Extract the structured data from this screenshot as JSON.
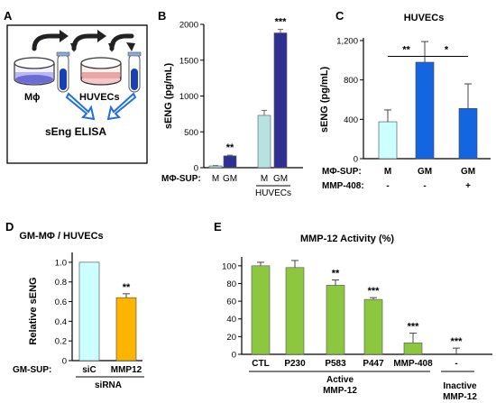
{
  "panels": {
    "A": {
      "label": "A",
      "macrophage_label": "Mϕ",
      "huvec_label": "HUVECs",
      "assay_label": "sEng ELISA"
    },
    "B": {
      "label": "B"
    },
    "C": {
      "label": "C"
    },
    "D": {
      "label": "D"
    },
    "E": {
      "label": "E"
    }
  },
  "colors": {
    "gm_blue_dark": "#2e3192",
    "m_light_cyan": "#b8e2e2",
    "gm_blue": "#1466e0",
    "m_pale_cyan": "#ccffff",
    "mmp12_orange": "#ffb400",
    "activity_green": "#8dc63f"
  },
  "chart_data": [
    {
      "id": "B",
      "type": "bar",
      "ylabel": "sENG (pg/mL)",
      "ylim": [
        0,
        2000
      ],
      "yticks": [
        0,
        500,
        1000,
        1500,
        2000
      ],
      "row_label": "MΦ-SUP:",
      "groups": [
        {
          "name": "",
          "bars": [
            {
              "label": "M",
              "value": 25,
              "error": 5,
              "sig": ""
            },
            {
              "label": "GM",
              "value": 165,
              "error": 10,
              "sig": "**"
            }
          ]
        },
        {
          "name": "HUVECs",
          "bars": [
            {
              "label": "M",
              "value": 730,
              "error": 70,
              "sig": ""
            },
            {
              "label": "GM",
              "value": 1880,
              "error": 50,
              "sig": "***"
            }
          ]
        }
      ]
    },
    {
      "id": "C",
      "type": "bar",
      "title": "HUVECs",
      "ylabel": "sENG (pg/mL)",
      "ylim": [
        0,
        1200
      ],
      "yticks": [
        "0",
        "400",
        "800",
        "1,200"
      ],
      "ytick_values": [
        0,
        400,
        800,
        1200
      ],
      "rows": [
        {
          "label": "MΦ-SUP:",
          "values": [
            "M",
            "GM",
            "GM"
          ]
        },
        {
          "label": "MMP-408:",
          "values": [
            "-",
            "-",
            "+"
          ]
        }
      ],
      "values": [
        375,
        980,
        510
      ],
      "errors": [
        120,
        210,
        250
      ],
      "comparisons": [
        {
          "from": 0,
          "to": 1,
          "sig": "**"
        },
        {
          "from": 1,
          "to": 2,
          "sig": "*"
        }
      ]
    },
    {
      "id": "D",
      "type": "bar",
      "title": "GM-MΦ / HUVECs",
      "ylabel": "Relative sENG",
      "ylim": [
        0,
        1.1
      ],
      "yticks": [
        "0",
        "0.2",
        "0.4",
        "0.6",
        "0.8",
        "1.0"
      ],
      "ytick_values": [
        0,
        0.2,
        0.4,
        0.6,
        0.8,
        1.0
      ],
      "row_label": "GM-SUP:",
      "categories": [
        "siC",
        "MMP12"
      ],
      "values": [
        1.0,
        0.64
      ],
      "errors": [
        0,
        0.04
      ],
      "sig": [
        "",
        "**"
      ],
      "group_label": "siRNA"
    },
    {
      "id": "E",
      "type": "bar",
      "title": "MMP-12 Activity (%)",
      "ylim": [
        0,
        110
      ],
      "yticks": [
        0,
        20,
        40,
        60,
        80,
        100
      ],
      "categories": [
        "CTL",
        "P230",
        "P583",
        "P447",
        "MMP-408",
        "-"
      ],
      "values": [
        100,
        98,
        78,
        62,
        13,
        0
      ],
      "errors": [
        4,
        8,
        6,
        2,
        11,
        7
      ],
      "sig": [
        "",
        "",
        "**",
        "***",
        "***",
        "***"
      ],
      "group_labels": [
        {
          "text": "Active\nMMP-12",
          "line1": "Active",
          "line2": "MMP-12"
        },
        {
          "text": "Inactive\nMMP-12",
          "line1": "Inactive",
          "line2": "MMP-12"
        }
      ]
    }
  ]
}
